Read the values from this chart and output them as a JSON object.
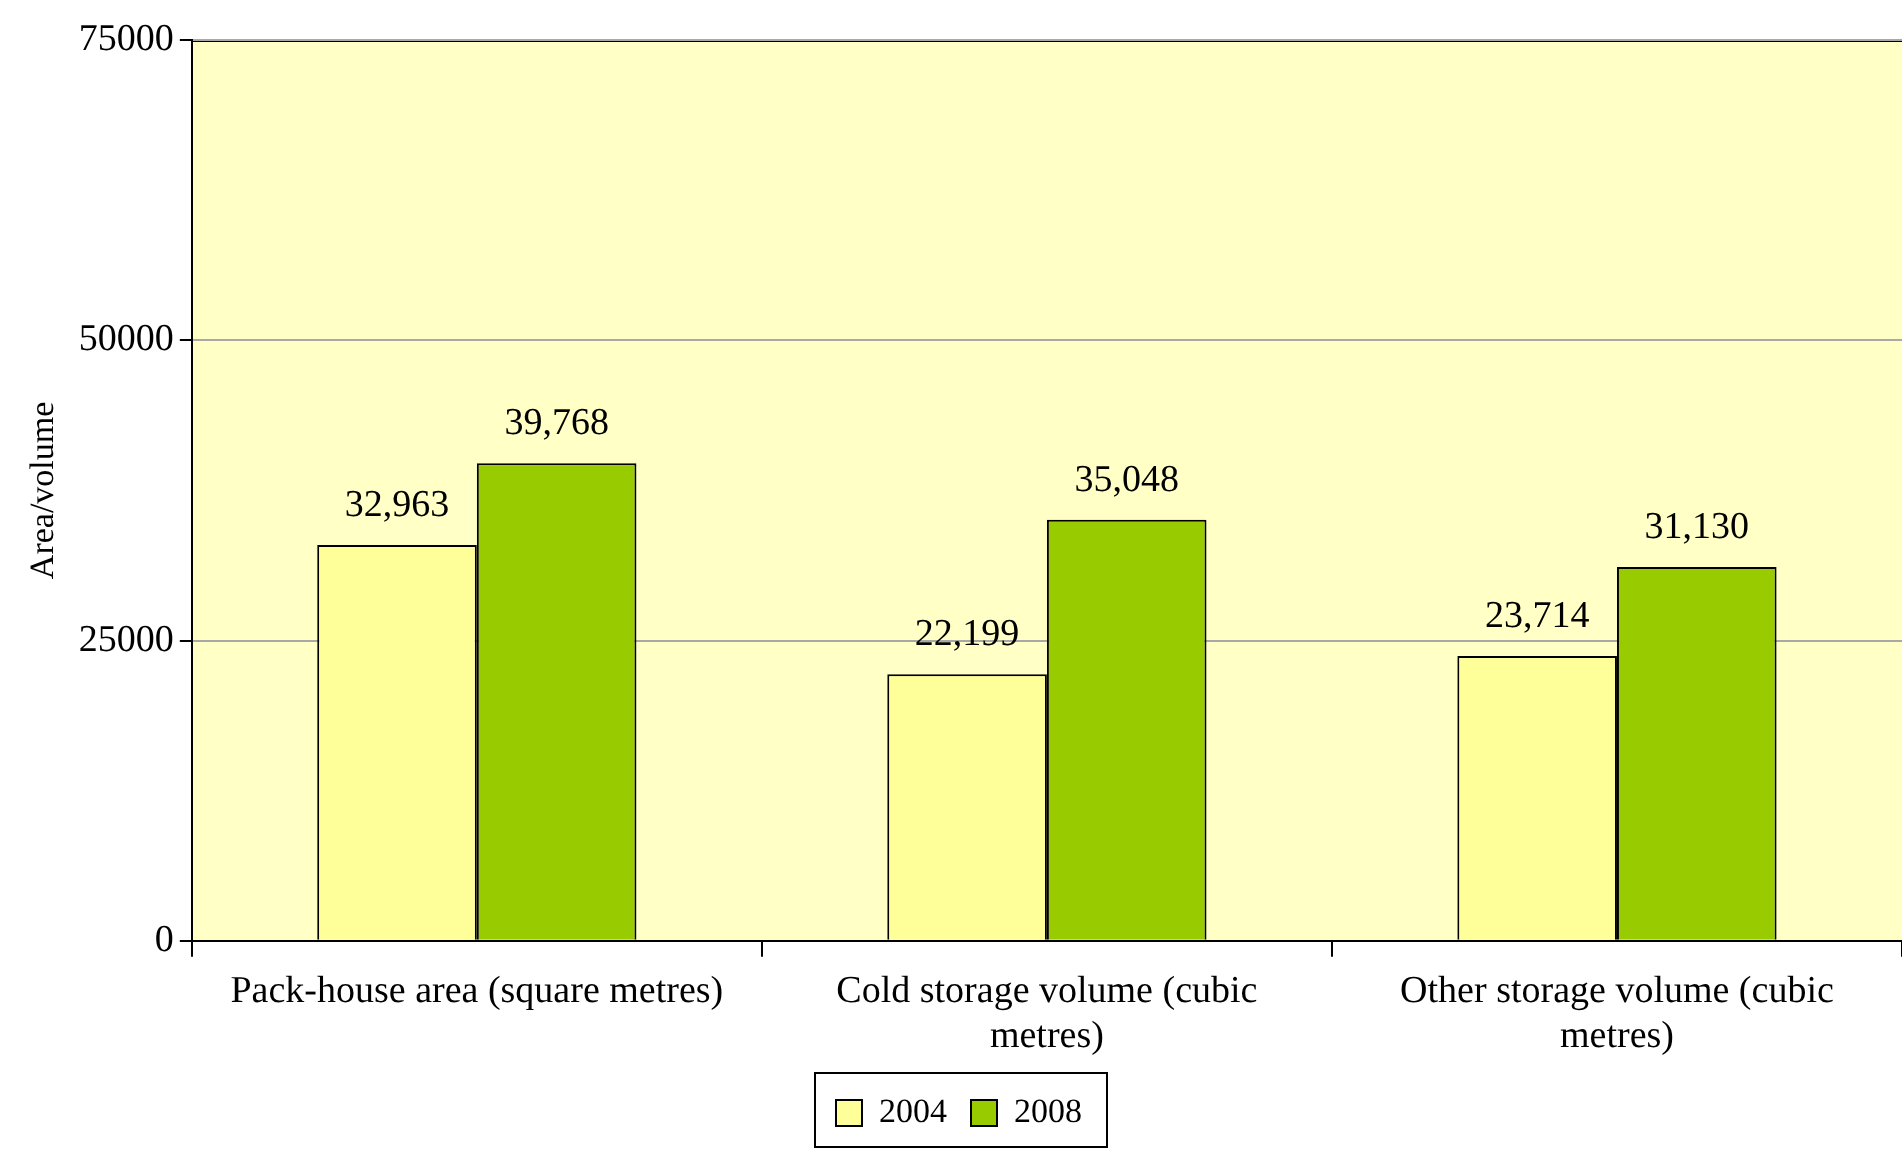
{
  "chart_data": {
    "type": "bar",
    "ylabel": "Area/volume",
    "categories": [
      "Pack-house area (square metres)",
      "Cold storage volume (cubic metres)",
      "Other storage volume (cubic metres)"
    ],
    "series": [
      {
        "name": "2004",
        "color": "#ffff99",
        "values": [
          32963,
          22199,
          23714
        ],
        "value_labels": [
          "32,963",
          "22,199",
          "23,714"
        ]
      },
      {
        "name": "2008",
        "color": "#99cc00",
        "values": [
          39768,
          35048,
          31130
        ],
        "value_labels": [
          "39,768",
          "35,048",
          "31,130"
        ]
      }
    ],
    "ylim": [
      0,
      75000
    ],
    "yticks": [
      0,
      25000,
      50000,
      75000
    ],
    "grid": "y",
    "legend": "bottom"
  }
}
